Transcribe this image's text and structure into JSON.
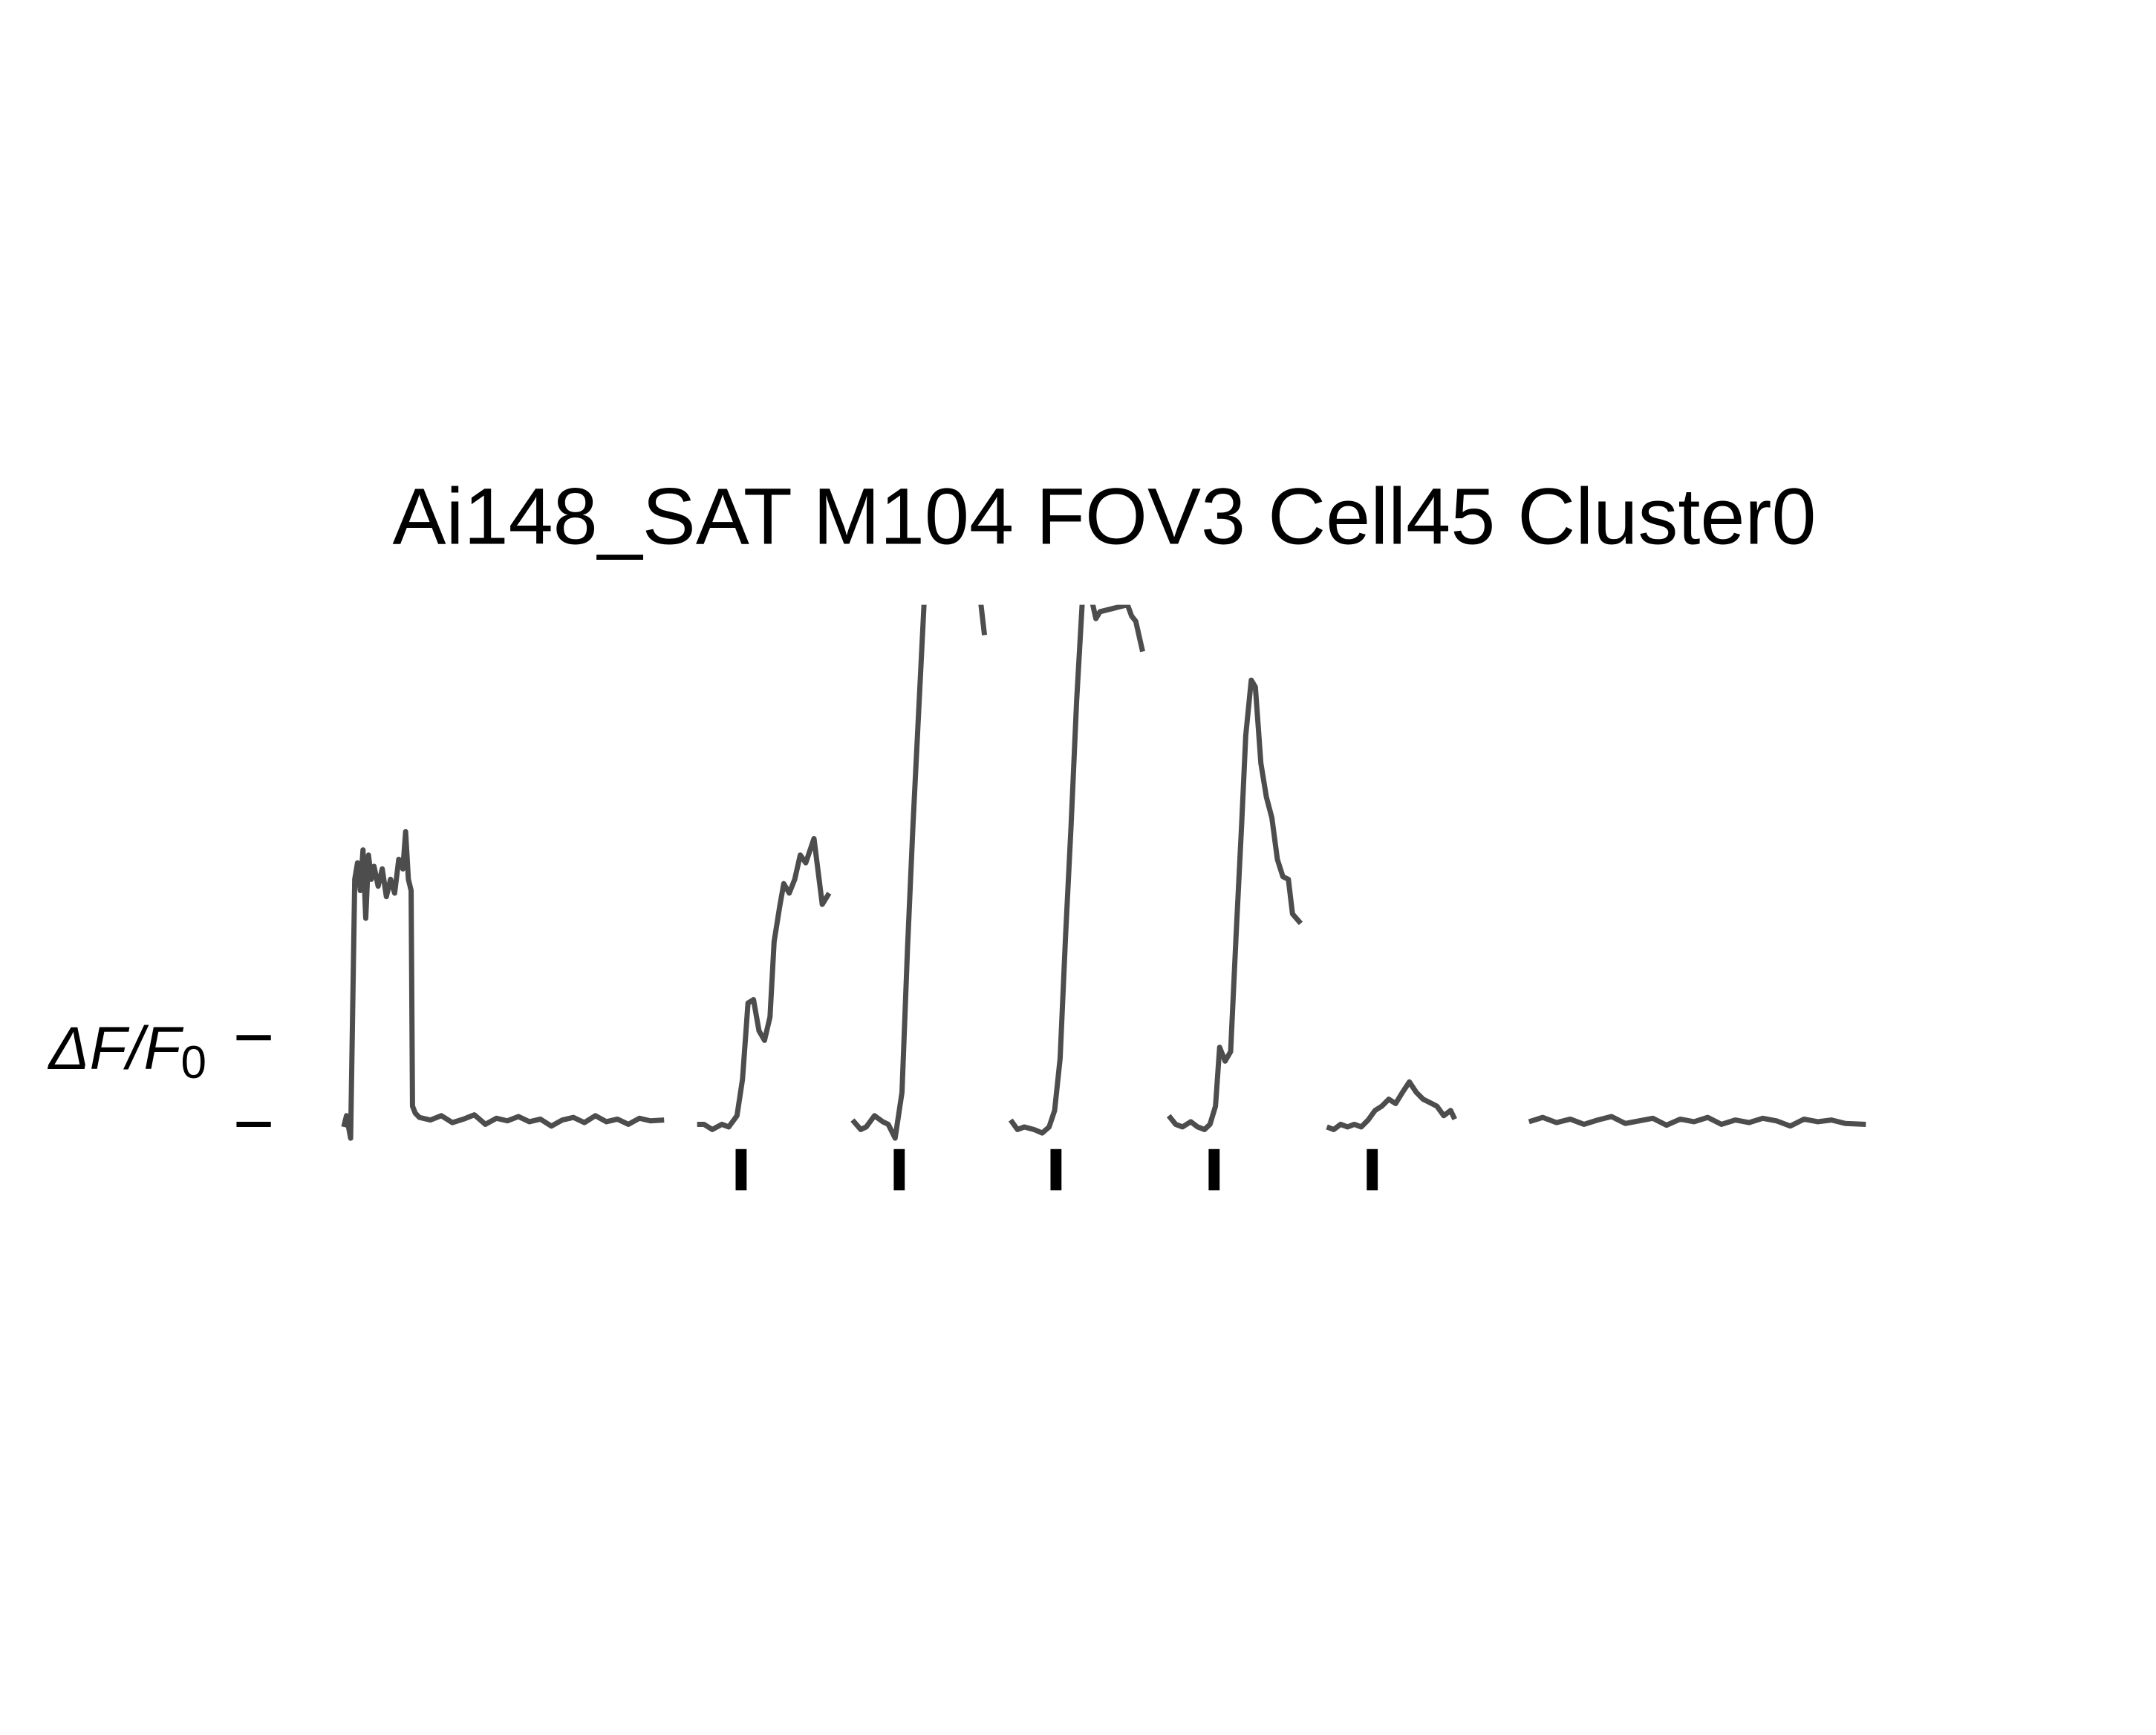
{
  "chart_data": {
    "type": "line",
    "title": "Ai148_SAT M104 FOV3 Cell45 Cluster0",
    "scale_label": "ΔF/F",
    "scale_label_sub": "0",
    "color": "#4d4d4d",
    "stimulus_color": "#000000",
    "xlim": [
      0,
      1107
    ],
    "ylim": [
      -0.5,
      6
    ],
    "yticks": [
      0,
      1
    ],
    "grid": false,
    "stimuli": [
      289,
      404,
      518,
      633,
      748
    ],
    "segments": [
      {
        "x": [
          0,
          2,
          5,
          8,
          10,
          12,
          14,
          16,
          18,
          20,
          22,
          25,
          28,
          31,
          34,
          37,
          40,
          43,
          45,
          47,
          49,
          50,
          52,
          55,
          63,
          71,
          79,
          87,
          95,
          103,
          111,
          119,
          127,
          135,
          143,
          151,
          159,
          167,
          175,
          183,
          191,
          199,
          207,
          215,
          223,
          233
        ],
        "values": [
          -0.03,
          0.1,
          -0.16,
          2.83,
          3.02,
          2.7,
          3.17,
          2.38,
          3.11,
          2.83,
          2.98,
          2.75,
          2.95,
          2.63,
          2.83,
          2.67,
          3.06,
          2.95,
          3.38,
          2.83,
          2.7,
          0.21,
          0.13,
          0.08,
          0.05,
          0.1,
          0.02,
          0.06,
          0.11,
          0.0,
          0.07,
          0.04,
          0.09,
          0.03,
          0.06,
          -0.02,
          0.05,
          0.08,
          0.02,
          0.1,
          0.03,
          0.06,
          0.0,
          0.07,
          0.04,
          0.05
        ]
      },
      {
        "x": [
          257,
          262,
          268,
          275,
          280,
          286,
          290,
          294,
          298,
          302,
          306,
          310,
          313,
          317,
          320,
          324,
          328,
          332,
          336,
          342,
          348,
          353
        ],
        "values": [
          0.0,
          0.0,
          -0.06,
          0.0,
          -0.03,
          0.1,
          0.52,
          1.4,
          1.44,
          1.08,
          0.97,
          1.24,
          2.11,
          2.51,
          2.78,
          2.67,
          2.83,
          3.11,
          3.02,
          3.3,
          2.54,
          2.67
        ]
      },
      {
        "x": [
          370,
          376,
          380,
          386,
          392,
          396,
          401,
          406,
          410,
          414,
          418,
          422,
          428,
          462,
          466
        ],
        "values": [
          0.05,
          -0.06,
          -0.03,
          0.1,
          0.03,
          0.0,
          -0.16,
          0.37,
          2.03,
          3.46,
          4.73,
          6.0,
          6.5,
          6.2,
          5.65
        ]
      },
      {
        "x": [
          485,
          490,
          495,
          502,
          508,
          513,
          517,
          521,
          525,
          529,
          533,
          537,
          542,
          547,
          550,
          570,
          573,
          576,
          581
        ],
        "values": [
          0.05,
          -0.06,
          -0.03,
          -0.06,
          -0.1,
          -0.03,
          0.16,
          0.76,
          2.19,
          3.46,
          4.89,
          6.0,
          6.2,
          5.84,
          5.92,
          6.0,
          5.87,
          5.81,
          5.46
        ]
      },
      {
        "x": [
          600,
          605,
          610,
          616,
          621,
          626,
          630,
          634,
          637,
          641,
          645,
          649,
          653,
          656,
          660,
          663,
          667,
          671,
          675,
          679,
          683,
          687,
          690,
          696
        ],
        "values": [
          0.1,
          0.0,
          -0.03,
          0.03,
          -0.03,
          -0.06,
          0.0,
          0.21,
          0.89,
          0.73,
          0.84,
          2.19,
          3.46,
          4.49,
          5.13,
          5.05,
          4.17,
          3.78,
          3.54,
          3.06,
          2.86,
          2.83,
          2.43,
          2.32
        ]
      },
      {
        "x": [
          715,
          720,
          725,
          730,
          735,
          740,
          745,
          750,
          755,
          760,
          765,
          770,
          775,
          780,
          785,
          790,
          795,
          800,
          805,
          808
        ],
        "values": [
          -0.03,
          -0.06,
          0.0,
          -0.03,
          0.0,
          -0.03,
          0.05,
          0.16,
          0.21,
          0.29,
          0.24,
          0.37,
          0.49,
          0.37,
          0.29,
          0.25,
          0.21,
          0.1,
          0.16,
          0.06
        ]
      },
      {
        "x": [
          862,
          872,
          882,
          892,
          902,
          912,
          922,
          932,
          942,
          952,
          962,
          972,
          982,
          992,
          1002,
          1012,
          1022,
          1032,
          1042,
          1052,
          1062,
          1072,
          1082,
          1092,
          1107
        ],
        "values": [
          0.03,
          0.08,
          0.02,
          0.06,
          0.0,
          0.05,
          0.09,
          0.01,
          0.04,
          0.07,
          -0.01,
          0.06,
          0.03,
          0.08,
          0.0,
          0.05,
          0.02,
          0.07,
          0.04,
          -0.02,
          0.06,
          0.03,
          0.05,
          0.01,
          0.0
        ]
      }
    ]
  }
}
